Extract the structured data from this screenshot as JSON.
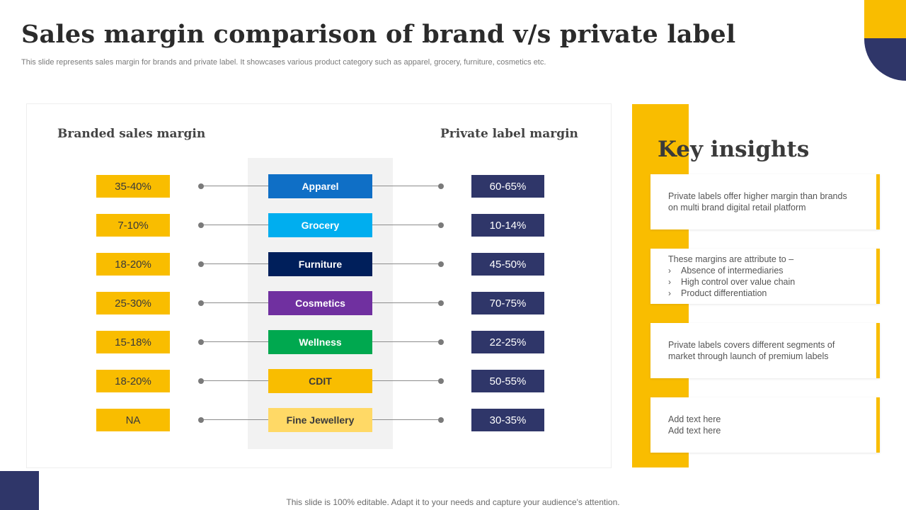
{
  "slide": {
    "title": "Sales margin comparison of brand v/s private label",
    "subtitle": "This slide represents sales margin for brands and private label. It showcases various product category such as apparel, grocery, furniture, cosmetics etc.",
    "footer": "This slide is 100% editable. Adapt it to your needs and capture your audience's attention."
  },
  "comparison": {
    "branded_heading": "Branded sales margin",
    "private_heading": "Private label margin",
    "rows": [
      {
        "category": "Apparel",
        "branded": "35-40%",
        "private": "60-65%",
        "color": "#0f6fc6",
        "text_color": "#ffffff"
      },
      {
        "category": "Grocery",
        "branded": "7-10%",
        "private": "10-14%",
        "color": "#00aeef",
        "text_color": "#ffffff"
      },
      {
        "category": "Furniture",
        "branded": "18-20%",
        "private": "45-50%",
        "color": "#001f5b",
        "text_color": "#ffffff"
      },
      {
        "category": "Cosmetics",
        "branded": "25-30%",
        "private": "70-75%",
        "color": "#7030a0",
        "text_color": "#ffffff"
      },
      {
        "category": "Wellness",
        "branded": "15-18%",
        "private": "22-25%",
        "color": "#00a84f",
        "text_color": "#ffffff"
      },
      {
        "category": "CDIT",
        "branded": "18-20%",
        "private": "50-55%",
        "color": "#f9bd00",
        "text_color": "#3a3a3a"
      },
      {
        "category": "Fine Jewellery",
        "branded": "NA",
        "private": "30-35%",
        "color": "#ffd966",
        "text_color": "#3a3a3a"
      }
    ]
  },
  "insights": {
    "title": "Key insights",
    "card1": "Private labels offer higher margin than brands on multi brand digital retail platform",
    "card2_intro": "These margins are attribute to –",
    "card2_points": [
      "Absence of intermediaries",
      "High control over value chain",
      "Product differentiation"
    ],
    "card3": "Private labels covers different segments of market through launch of premium labels",
    "card4_lines": [
      "Add text here",
      "Add text here"
    ]
  },
  "colors": {
    "accent_yellow": "#f9bd00",
    "navy": "#2f3669"
  }
}
